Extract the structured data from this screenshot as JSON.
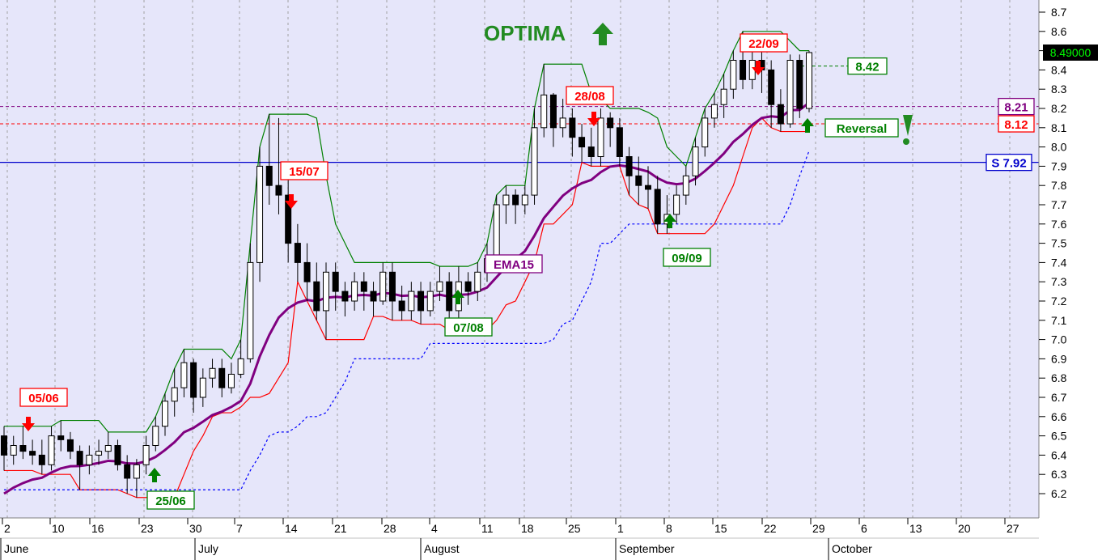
{
  "chart_data": {
    "type": "candlestick",
    "title": "OPTIMA",
    "ylim": [
      6.15,
      8.75
    ],
    "y_ticks": [
      "6.2",
      "6.3",
      "6.4",
      "6.5",
      "6.6",
      "6.7",
      "6.8",
      "6.9",
      "7.0",
      "7.1",
      "7.2",
      "7.3",
      "7.4",
      "7.5",
      "7.6",
      "7.7",
      "7.8",
      "7.9",
      "8.0",
      "8.1",
      "8.2",
      "8.3",
      "8.4",
      "8.5",
      "8.6",
      "8.7"
    ],
    "x_ticks": [
      "2",
      "10",
      "16",
      "23",
      "30",
      "7",
      "14",
      "21",
      "28",
      "4",
      "11",
      "18",
      "25",
      "1",
      "8",
      "15",
      "22",
      "29",
      "6",
      "13",
      "20",
      "27"
    ],
    "months": [
      "June",
      "July",
      "August",
      "September",
      "October"
    ],
    "last_price": "8.49000",
    "levels": [
      {
        "label": "S 7.92",
        "value": 7.92,
        "color": "#0000cc"
      },
      {
        "label": "8.21",
        "value": 8.21,
        "color": "#800080"
      },
      {
        "label": "8.12",
        "value": 8.12,
        "color": "#ff0000"
      },
      {
        "label": "8.42",
        "value": 8.42,
        "color": "#008000"
      }
    ],
    "signals": [
      {
        "label": "05/06",
        "type": "sell",
        "day": 1
      },
      {
        "label": "25/06",
        "type": "buy",
        "day": 15
      },
      {
        "label": "15/07",
        "type": "sell",
        "day": 28
      },
      {
        "label": "07/08",
        "type": "buy",
        "day": 44
      },
      {
        "label": "28/08",
        "type": "sell",
        "day": 58
      },
      {
        "label": "09/09",
        "type": "buy",
        "day": 66
      },
      {
        "label": "22/09",
        "type": "sell",
        "day": 75
      }
    ],
    "annotations": [
      "EMA15",
      "Reversal"
    ],
    "candles": [
      [
        6.5,
        6.4,
        6.55,
        6.32
      ],
      [
        6.4,
        6.45,
        6.5,
        6.35
      ],
      [
        6.45,
        6.42,
        6.55,
        6.38
      ],
      [
        6.42,
        6.4,
        6.48,
        6.35
      ],
      [
        6.4,
        6.35,
        6.48,
        6.3
      ],
      [
        6.35,
        6.5,
        6.55,
        6.32
      ],
      [
        6.5,
        6.48,
        6.58,
        6.42
      ],
      [
        6.48,
        6.42,
        6.52,
        6.38
      ],
      [
        6.42,
        6.35,
        6.45,
        6.22
      ],
      [
        6.35,
        6.4,
        6.45,
        6.3
      ],
      [
        6.4,
        6.42,
        6.48,
        6.35
      ],
      [
        6.42,
        6.45,
        6.52,
        6.38
      ],
      [
        6.45,
        6.35,
        6.48,
        6.32
      ],
      [
        6.35,
        6.28,
        6.4,
        6.2
      ],
      [
        6.28,
        6.35,
        6.38,
        6.18
      ],
      [
        6.35,
        6.45,
        6.5,
        6.3
      ],
      [
        6.45,
        6.55,
        6.6,
        6.42
      ],
      [
        6.55,
        6.68,
        6.72,
        6.5
      ],
      [
        6.68,
        6.75,
        6.85,
        6.6
      ],
      [
        6.75,
        6.88,
        6.95,
        6.7
      ],
      [
        6.88,
        6.7,
        6.9,
        6.62
      ],
      [
        6.7,
        6.8,
        6.85,
        6.65
      ],
      [
        6.8,
        6.85,
        6.9,
        6.75
      ],
      [
        6.85,
        6.75,
        6.9,
        6.7
      ],
      [
        6.75,
        6.82,
        6.88,
        6.72
      ],
      [
        6.82,
        6.9,
        7.0,
        6.8
      ],
      [
        6.9,
        7.4,
        7.5,
        6.88
      ],
      [
        7.4,
        7.9,
        8.0,
        7.3
      ],
      [
        7.9,
        7.8,
        8.17,
        7.7
      ],
      [
        7.8,
        7.75,
        8.15,
        7.65
      ],
      [
        7.75,
        7.5,
        7.85,
        7.4
      ],
      [
        7.5,
        7.4,
        7.6,
        7.3
      ],
      [
        7.4,
        7.3,
        7.5,
        7.2
      ],
      [
        7.3,
        7.15,
        7.4,
        7.1
      ],
      [
        7.15,
        7.35,
        7.4,
        7.0
      ],
      [
        7.35,
        7.25,
        7.4,
        7.15
      ],
      [
        7.25,
        7.2,
        7.3,
        7.12
      ],
      [
        7.2,
        7.3,
        7.35,
        7.15
      ],
      [
        7.3,
        7.25,
        7.35,
        7.15
      ],
      [
        7.25,
        7.2,
        7.3,
        7.12
      ],
      [
        7.2,
        7.35,
        7.4,
        7.18
      ],
      [
        7.35,
        7.2,
        7.4,
        7.1
      ],
      [
        7.2,
        7.15,
        7.28,
        7.1
      ],
      [
        7.15,
        7.25,
        7.3,
        7.1
      ],
      [
        7.25,
        7.15,
        7.3,
        7.08
      ],
      [
        7.15,
        7.25,
        7.3,
        7.12
      ],
      [
        7.25,
        7.3,
        7.38,
        7.2
      ],
      [
        7.3,
        7.15,
        7.35,
        7.05
      ],
      [
        7.15,
        7.3,
        7.38,
        7.1
      ],
      [
        7.3,
        7.25,
        7.35,
        7.18
      ],
      [
        7.25,
        7.35,
        7.4,
        7.2
      ],
      [
        7.35,
        7.42,
        7.5,
        7.3
      ],
      [
        7.42,
        7.7,
        7.75,
        7.4
      ],
      [
        7.7,
        7.75,
        7.8,
        7.6
      ],
      [
        7.75,
        7.7,
        7.78,
        7.6
      ],
      [
        7.7,
        7.75,
        7.8,
        7.65
      ],
      [
        7.75,
        8.1,
        8.2,
        7.7
      ],
      [
        8.1,
        8.27,
        8.43,
        8.05
      ],
      [
        8.27,
        8.1,
        8.28,
        8.0
      ],
      [
        8.1,
        8.15,
        8.25,
        8.05
      ]
    ],
    "series": [
      {
        "name": "EMA15",
        "color": "#800080"
      },
      {
        "name": "upper",
        "color": "#008000"
      },
      {
        "name": "lower",
        "color": "#ff0000"
      },
      {
        "name": "support",
        "color": "#0000ff"
      }
    ]
  }
}
